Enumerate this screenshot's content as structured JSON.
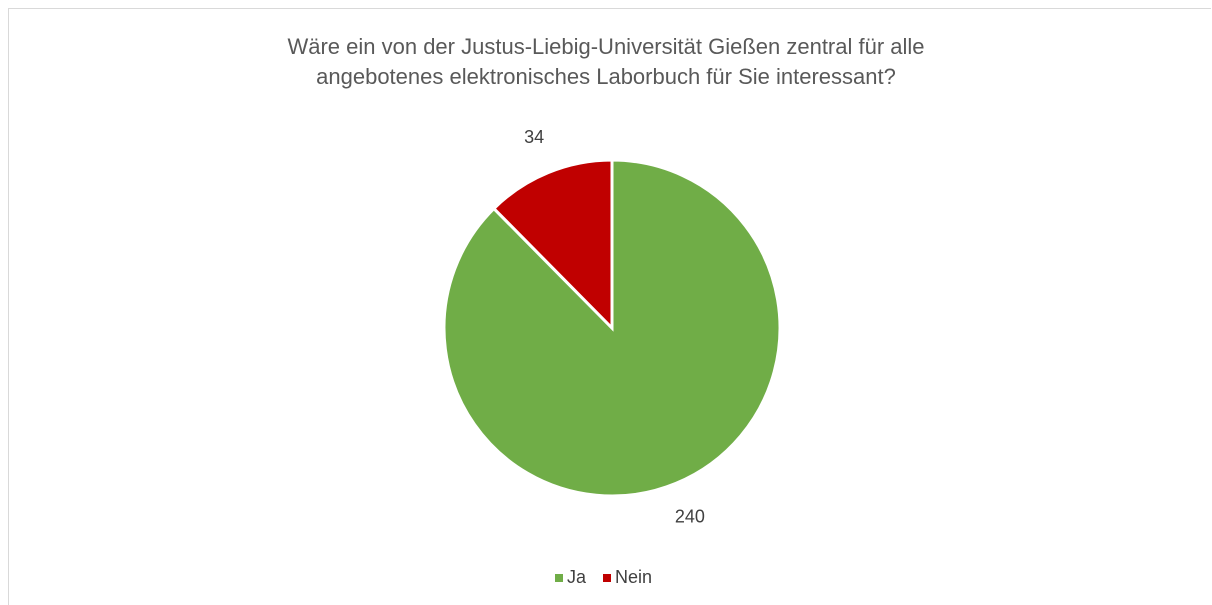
{
  "chart_data": {
    "type": "pie",
    "title": "Wäre ein von der Justus-Liebig-Universität Gießen zentral für alle angebotenes elektronisches Laborbuch für Sie interessant?",
    "categories": [
      "Ja",
      "Nein"
    ],
    "values": [
      240,
      34
    ],
    "colors": [
      "#70ad47",
      "#c00000"
    ],
    "legend": "bottom"
  }
}
